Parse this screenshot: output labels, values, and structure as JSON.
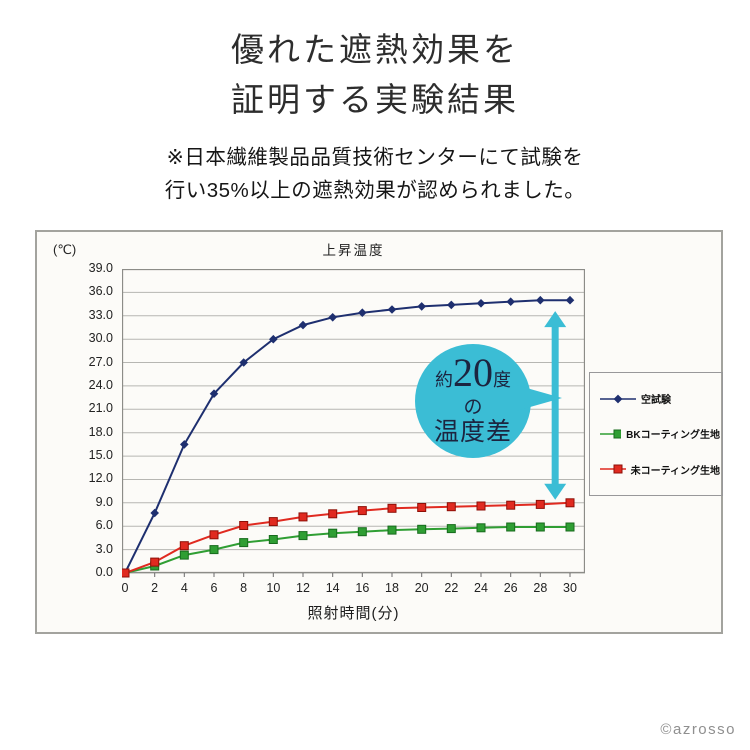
{
  "page": {
    "title_line1": "優れた遮熱効果を",
    "title_line2": "証明する実験結果",
    "note_line1": "※日本繊維製品品質技術センターにて試験を",
    "note_line2": "行い35%以上の遮熱効果が認められました。",
    "footer": "©azrosso"
  },
  "chart_data": {
    "type": "line",
    "title": "上昇温度",
    "unit_label": "(℃)",
    "xlabel": "照射時間(分)",
    "x": [
      0,
      2,
      4,
      6,
      8,
      10,
      12,
      14,
      16,
      18,
      20,
      22,
      24,
      26,
      28,
      30
    ],
    "ylim": [
      0,
      39
    ],
    "ytick_step": 3,
    "ytick_labels": [
      "39.0",
      "36.0",
      "33.0",
      "30.0",
      "27.0",
      "24.0",
      "21.0",
      "18.0",
      "15.0",
      "12.0",
      "9.0",
      "6.0",
      "3.0",
      "0.0"
    ],
    "grid": "horizontal",
    "legend_position": "right",
    "series": [
      {
        "name": "空試験",
        "color": "#1e2f6f",
        "marker": "diamond",
        "marker_stroke": "#1e2f6f",
        "values": [
          0.0,
          7.7,
          16.5,
          23.0,
          27.0,
          30.0,
          31.8,
          32.8,
          33.4,
          33.8,
          34.2,
          34.4,
          34.6,
          34.8,
          35.0,
          35.0
        ]
      },
      {
        "name": "BKコーティング生地",
        "color": "#2f9e33",
        "marker": "square",
        "marker_stroke": "#176b1d",
        "values": [
          0.0,
          0.9,
          2.3,
          3.0,
          3.9,
          4.3,
          4.8,
          5.1,
          5.3,
          5.5,
          5.6,
          5.7,
          5.8,
          5.9,
          5.9,
          5.9
        ]
      },
      {
        "name": "未コーティング生地",
        "color": "#e02a20",
        "marker": "square",
        "marker_stroke": "#8e0f07",
        "values": [
          0.0,
          1.4,
          3.5,
          4.9,
          6.1,
          6.6,
          7.2,
          7.6,
          8.0,
          8.3,
          8.4,
          8.5,
          8.6,
          8.7,
          8.8,
          9.0
        ]
      }
    ],
    "annotation": {
      "label_line1_prefix": "約",
      "label_line1_big": "20",
      "label_line1_suffix": "度",
      "label_line2": "の",
      "label_line3": "温度差",
      "arrow_x": 29,
      "arrow_from": 33.6,
      "arrow_to": 9.4,
      "color": "#3bbdd5",
      "text_color": "#1c2540"
    }
  }
}
